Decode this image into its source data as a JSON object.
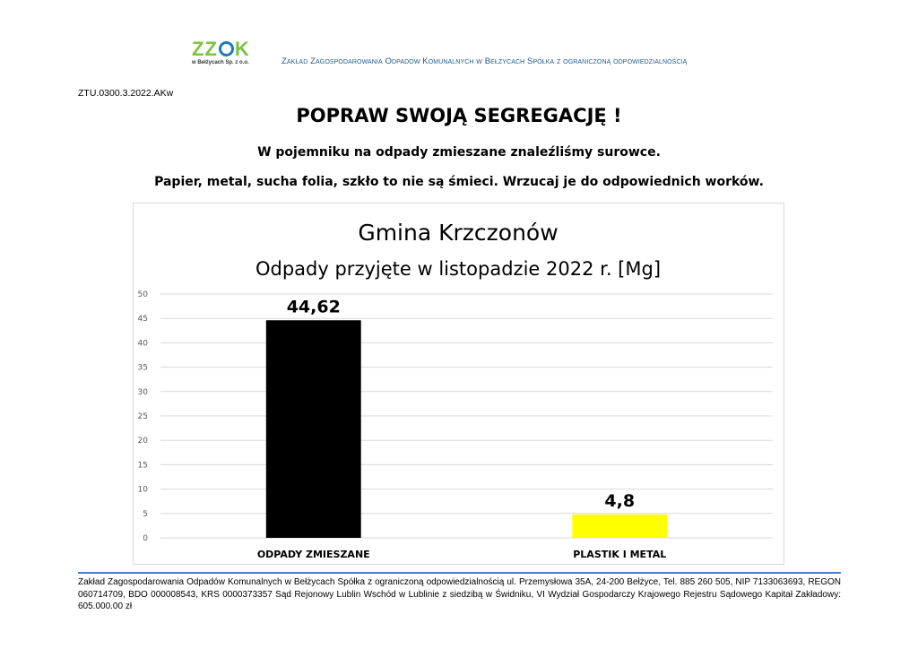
{
  "header": {
    "logo_text": "ZZOK",
    "logo_subtext": "w Bełżycach Sp. z o.o.",
    "company_name": "Zakład Zagospodarowania Odpadów Komunalnych w Bełżycach Spółka z ograniczoną odpowiedzialnością"
  },
  "document": {
    "reference": "ZTU.0300.3.2022.AKw",
    "title": "POPRAW SWOJĄ SEGREGACJĘ !",
    "line1": "W pojemniku na odpady zmieszane znaleźliśmy surowce.",
    "line2": "Papier, metal, sucha folia, szkło to nie są śmieci. Wrzucaj je do odpowiednich worków."
  },
  "chart_data": {
    "type": "bar",
    "title": "Gmina Krzczonów",
    "subtitle": "Odpady przyjęte w listopadzie 2022 r. [Mg]",
    "categories": [
      "ODPADY ZMIESZANE",
      "PLASTIK I METAL"
    ],
    "values": [
      44.62,
      4.8
    ],
    "value_labels": [
      "44,62",
      "4,8"
    ],
    "colors": [
      "#000000",
      "#ffff00"
    ],
    "ylim": [
      0,
      50
    ],
    "yticks": [
      0,
      5,
      10,
      15,
      20,
      25,
      30,
      35,
      40,
      45,
      50
    ],
    "grid": true,
    "xlabel": "",
    "ylabel": ""
  },
  "footer": {
    "text": "Zakład Zagospodarowania Odpadów Komunalnych w Bełżycach Spółka z ograniczoną odpowiedzialnością ul. Przemysłowa 35A, 24-200 Bełżyce, Tel. 885 260 505, NIP 7133063693, REGON 060714709, BDO 000008543, KRS 0000373357 Sąd Rejonowy Lublin Wschód w Lublinie z siedzibą w Świdniku, VI Wydział Gospodarczy Krajowego Rejestru Sądowego Kapitał Zakładowy: 605.000.00 zł"
  }
}
